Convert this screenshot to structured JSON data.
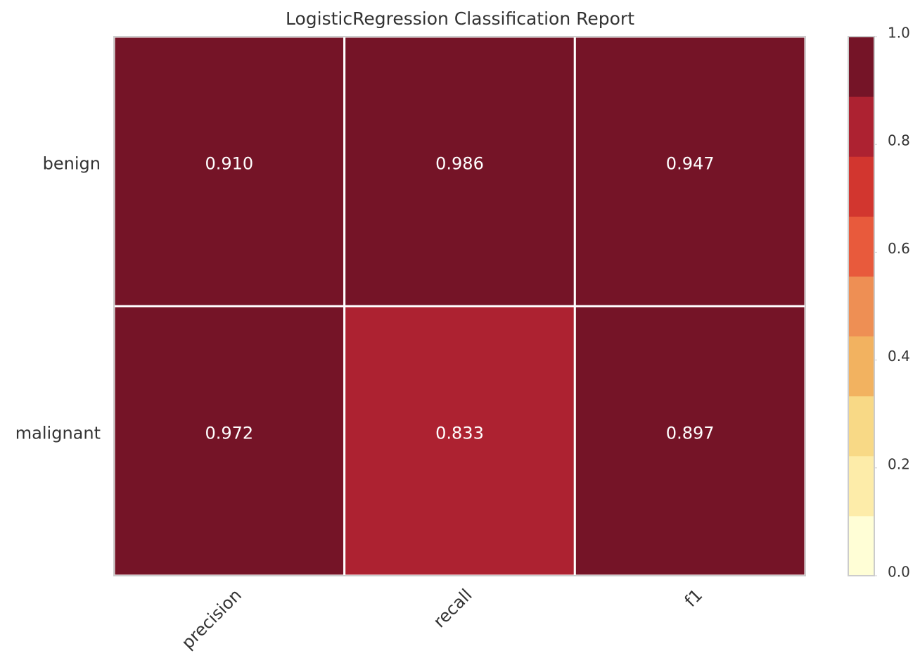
{
  "chart_data": {
    "type": "heatmap",
    "title": "LogisticRegression Classification Report",
    "rows": [
      "benign",
      "malignant"
    ],
    "columns": [
      "precision",
      "recall",
      "f1"
    ],
    "values": [
      [
        0.91,
        0.986,
        0.947
      ],
      [
        0.972,
        0.833,
        0.897
      ]
    ],
    "value_labels": [
      [
        "0.910",
        "0.986",
        "0.947"
      ],
      [
        "0.972",
        "0.833",
        "0.897"
      ]
    ],
    "zlim": [
      0,
      1
    ],
    "zticks": [
      {
        "value": 0,
        "label": "0.0"
      },
      0.2,
      0.4,
      0.6,
      0.8,
      {
        "value": 1,
        "label": "1.0"
      }
    ],
    "colors": [
      "#fffed6",
      "#fdeca9",
      "#f8d986",
      "#f2b260",
      "#ee8f54",
      "#e85a3c",
      "#d2362f",
      "#ad2231",
      "#751427"
    ]
  }
}
